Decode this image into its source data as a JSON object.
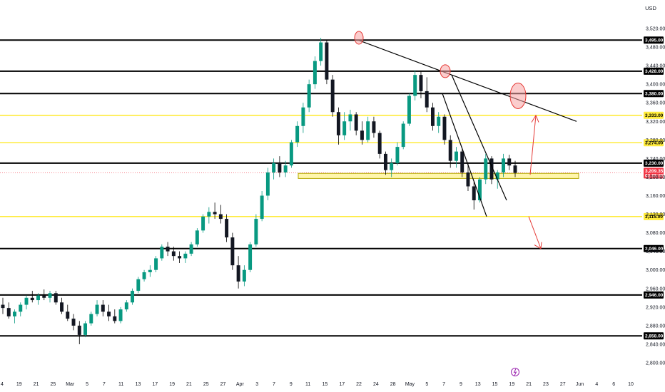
{
  "chart_data": {
    "type": "candlestick",
    "currency": "USD",
    "y_range": [
      2780,
      3540
    ],
    "y_ticks": [
      "3,520.00",
      "3,480.00",
      "3,440.00",
      "3,400.00",
      "3,360.00",
      "3,320.00",
      "3,280.00",
      "3,240.00",
      "3,200.00",
      "3,160.00",
      "3,120.00",
      "3,080.00",
      "3,040.00",
      "3,000.00",
      "2,960.00",
      "2,920.00",
      "2,880.00",
      "2,840.00",
      "2,800.00"
    ],
    "x_ticks": [
      "4",
      "19",
      "21",
      "25",
      "Mar",
      "5",
      "7",
      "11",
      "13",
      "17",
      "19",
      "21",
      "25",
      "27",
      "Apr",
      "3",
      "7",
      "9",
      "11",
      "15",
      "17",
      "22",
      "24",
      "28",
      "May",
      "5",
      "7",
      "9",
      "13",
      "15",
      "19",
      "21",
      "23",
      "27",
      "Jun",
      "4",
      "6",
      "10"
    ],
    "horizontal_levels": [
      {
        "value": 3495.0,
        "label": "3,495.00",
        "color": "#000000"
      },
      {
        "value": 3428.0,
        "label": "3,428.00",
        "color": "#000000"
      },
      {
        "value": 3380.0,
        "label": "3,380.00",
        "color": "#000000"
      },
      {
        "value": 3333.0,
        "label": "3,333.00",
        "color": "#ffeb3b"
      },
      {
        "value": 3274.0,
        "label": "3,274.00",
        "color": "#ffeb3b"
      },
      {
        "value": 3230.0,
        "label": "3,230.00",
        "color": "#000000"
      },
      {
        "value": 3115.0,
        "label": "3,115.00",
        "color": "#ffeb3b"
      },
      {
        "value": 3046.0,
        "label": "3,046.00",
        "color": "#000000"
      },
      {
        "value": 2946.0,
        "label": "2,946.00",
        "color": "#000000"
      },
      {
        "value": 2858.0,
        "label": "2,858.00",
        "color": "#000000"
      }
    ],
    "current_price": {
      "value": 3209.35,
      "label": "3,209.35",
      "countdown": "02:05:55",
      "color": "#f23645"
    },
    "support_zone": [
      3197,
      3208
    ],
    "candles_approx": [
      {
        "o": 2925,
        "h": 2940,
        "l": 2905,
        "c": 2918
      },
      {
        "o": 2918,
        "h": 2930,
        "l": 2895,
        "c": 2900
      },
      {
        "o": 2900,
        "h": 2915,
        "l": 2885,
        "c": 2910
      },
      {
        "o": 2910,
        "h": 2930,
        "l": 2900,
        "c": 2925
      },
      {
        "o": 2925,
        "h": 2945,
        "l": 2915,
        "c": 2940
      },
      {
        "o": 2940,
        "h": 2955,
        "l": 2930,
        "c": 2935
      },
      {
        "o": 2935,
        "h": 2950,
        "l": 2925,
        "c": 2945
      },
      {
        "o": 2945,
        "h": 2958,
        "l": 2935,
        "c": 2940
      },
      {
        "o": 2940,
        "h": 2955,
        "l": 2930,
        "c": 2950
      },
      {
        "o": 2950,
        "h": 2955,
        "l": 2925,
        "c": 2930
      },
      {
        "o": 2930,
        "h": 2940,
        "l": 2905,
        "c": 2910
      },
      {
        "o": 2910,
        "h": 2925,
        "l": 2890,
        "c": 2895
      },
      {
        "o": 2895,
        "h": 2905,
        "l": 2870,
        "c": 2880
      },
      {
        "o": 2880,
        "h": 2890,
        "l": 2840,
        "c": 2860
      },
      {
        "o": 2860,
        "h": 2890,
        "l": 2855,
        "c": 2885
      },
      {
        "o": 2885,
        "h": 2910,
        "l": 2880,
        "c": 2905
      },
      {
        "o": 2905,
        "h": 2935,
        "l": 2900,
        "c": 2925
      },
      {
        "o": 2925,
        "h": 2935,
        "l": 2900,
        "c": 2910
      },
      {
        "o": 2910,
        "h": 2925,
        "l": 2890,
        "c": 2900
      },
      {
        "o": 2900,
        "h": 2915,
        "l": 2885,
        "c": 2890
      },
      {
        "o": 2890,
        "h": 2920,
        "l": 2885,
        "c": 2915
      },
      {
        "o": 2915,
        "h": 2935,
        "l": 2910,
        "c": 2930
      },
      {
        "o": 2930,
        "h": 2960,
        "l": 2925,
        "c": 2955
      },
      {
        "o": 2955,
        "h": 2985,
        "l": 2950,
        "c": 2980
      },
      {
        "o": 2980,
        "h": 3000,
        "l": 2975,
        "c": 2995
      },
      {
        "o": 2995,
        "h": 3010,
        "l": 2985,
        "c": 3000
      },
      {
        "o": 3000,
        "h": 3030,
        "l": 2995,
        "c": 3025
      },
      {
        "o": 3025,
        "h": 3055,
        "l": 3020,
        "c": 3050
      },
      {
        "o": 3050,
        "h": 3060,
        "l": 3030,
        "c": 3040
      },
      {
        "o": 3040,
        "h": 3050,
        "l": 3020,
        "c": 3030
      },
      {
        "o": 3030,
        "h": 3040,
        "l": 3015,
        "c": 3025
      },
      {
        "o": 3025,
        "h": 3040,
        "l": 3015,
        "c": 3035
      },
      {
        "o": 3035,
        "h": 3060,
        "l": 3030,
        "c": 3055
      },
      {
        "o": 3055,
        "h": 3090,
        "l": 3050,
        "c": 3085
      },
      {
        "o": 3085,
        "h": 3120,
        "l": 3080,
        "c": 3115
      },
      {
        "o": 3115,
        "h": 3135,
        "l": 3100,
        "c": 3125
      },
      {
        "o": 3125,
        "h": 3145,
        "l": 3110,
        "c": 3120
      },
      {
        "o": 3120,
        "h": 3140,
        "l": 3100,
        "c": 3110
      },
      {
        "o": 3110,
        "h": 3120,
        "l": 3060,
        "c": 3070
      },
      {
        "o": 3070,
        "h": 3080,
        "l": 3000,
        "c": 3010
      },
      {
        "o": 3010,
        "h": 3030,
        "l": 2960,
        "c": 2975
      },
      {
        "o": 2975,
        "h": 3010,
        "l": 2965,
        "c": 3000
      },
      {
        "o": 3000,
        "h": 3060,
        "l": 2995,
        "c": 3055
      },
      {
        "o": 3055,
        "h": 3120,
        "l": 3050,
        "c": 3110
      },
      {
        "o": 3110,
        "h": 3170,
        "l": 3105,
        "c": 3160
      },
      {
        "o": 3160,
        "h": 3220,
        "l": 3150,
        "c": 3210
      },
      {
        "o": 3210,
        "h": 3240,
        "l": 3195,
        "c": 3230
      },
      {
        "o": 3230,
        "h": 3245,
        "l": 3200,
        "c": 3210
      },
      {
        "o": 3210,
        "h": 3235,
        "l": 3200,
        "c": 3225
      },
      {
        "o": 3225,
        "h": 3280,
        "l": 3220,
        "c": 3275
      },
      {
        "o": 3275,
        "h": 3320,
        "l": 3265,
        "c": 3310
      },
      {
        "o": 3310,
        "h": 3360,
        "l": 3295,
        "c": 3350
      },
      {
        "o": 3350,
        "h": 3410,
        "l": 3340,
        "c": 3400
      },
      {
        "o": 3400,
        "h": 3460,
        "l": 3390,
        "c": 3450
      },
      {
        "o": 3450,
        "h": 3500,
        "l": 3440,
        "c": 3490
      },
      {
        "o": 3490,
        "h": 3495,
        "l": 3400,
        "c": 3410
      },
      {
        "o": 3410,
        "h": 3420,
        "l": 3330,
        "c": 3340
      },
      {
        "o": 3340,
        "h": 3350,
        "l": 3270,
        "c": 3290
      },
      {
        "o": 3290,
        "h": 3340,
        "l": 3280,
        "c": 3320
      },
      {
        "o": 3320,
        "h": 3345,
        "l": 3300,
        "c": 3335
      },
      {
        "o": 3335,
        "h": 3340,
        "l": 3290,
        "c": 3300
      },
      {
        "o": 3300,
        "h": 3320,
        "l": 3270,
        "c": 3280
      },
      {
        "o": 3280,
        "h": 3330,
        "l": 3275,
        "c": 3320
      },
      {
        "o": 3320,
        "h": 3330,
        "l": 3285,
        "c": 3295
      },
      {
        "o": 3295,
        "h": 3300,
        "l": 3240,
        "c": 3250
      },
      {
        "o": 3250,
        "h": 3255,
        "l": 3205,
        "c": 3215
      },
      {
        "o": 3215,
        "h": 3240,
        "l": 3200,
        "c": 3230
      },
      {
        "o": 3230,
        "h": 3275,
        "l": 3225,
        "c": 3265
      },
      {
        "o": 3265,
        "h": 3320,
        "l": 3260,
        "c": 3315
      },
      {
        "o": 3315,
        "h": 3380,
        "l": 3310,
        "c": 3375
      },
      {
        "o": 3375,
        "h": 3430,
        "l": 3365,
        "c": 3420
      },
      {
        "o": 3420,
        "h": 3428,
        "l": 3370,
        "c": 3385
      },
      {
        "o": 3385,
        "h": 3415,
        "l": 3340,
        "c": 3350
      },
      {
        "o": 3350,
        "h": 3360,
        "l": 3300,
        "c": 3310
      },
      {
        "o": 3310,
        "h": 3340,
        "l": 3295,
        "c": 3330
      },
      {
        "o": 3330,
        "h": 3335,
        "l": 3270,
        "c": 3280
      },
      {
        "o": 3280,
        "h": 3290,
        "l": 3220,
        "c": 3235
      },
      {
        "o": 3235,
        "h": 3265,
        "l": 3220,
        "c": 3255
      },
      {
        "o": 3255,
        "h": 3260,
        "l": 3200,
        "c": 3210
      },
      {
        "o": 3210,
        "h": 3230,
        "l": 3170,
        "c": 3180
      },
      {
        "o": 3180,
        "h": 3190,
        "l": 3130,
        "c": 3150
      },
      {
        "o": 3150,
        "h": 3200,
        "l": 3145,
        "c": 3195
      },
      {
        "o": 3195,
        "h": 3250,
        "l": 3185,
        "c": 3240
      },
      {
        "o": 3240,
        "h": 3245,
        "l": 3185,
        "c": 3195
      },
      {
        "o": 3195,
        "h": 3215,
        "l": 3175,
        "c": 3210
      },
      {
        "o": 3210,
        "h": 3250,
        "l": 3200,
        "c": 3240
      },
      {
        "o": 3240,
        "h": 3248,
        "l": 3215,
        "c": 3225
      },
      {
        "o": 3225,
        "h": 3235,
        "l": 3200,
        "c": 3209
      }
    ]
  }
}
